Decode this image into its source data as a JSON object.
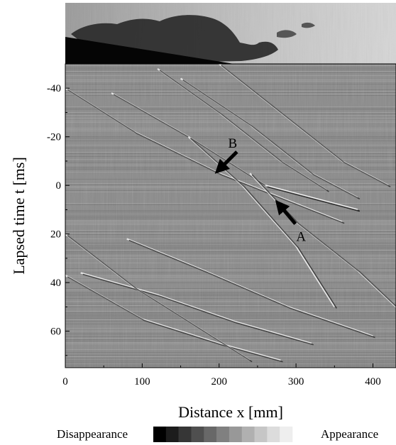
{
  "chart_data": {
    "type": "heatmap",
    "description_source": "spatio-temporal difference image (x–t plot)",
    "xlabel": "Distance x [mm]",
    "ylabel": "Lapsed time t [ms]",
    "xlim": [
      0,
      430
    ],
    "ylim": [
      -50,
      75
    ],
    "y_inverted": true,
    "x_ticks": [
      0,
      100,
      200,
      300,
      400
    ],
    "y_ticks": [
      -40,
      -20,
      0,
      20,
      40,
      60
    ],
    "grid": false,
    "legend": {
      "placement": "bottom",
      "low_label": "Disappearance",
      "high_label": "Appearance",
      "shades": [
        "#000000",
        "#1c1c1c",
        "#363636",
        "#4f4f4f",
        "#686868",
        "#808080",
        "#989898",
        "#b0b0b0",
        "#c6c6c6",
        "#dcdcdc",
        "#eeeeee"
      ]
    },
    "annotations": [
      {
        "text": "A",
        "x": 290,
        "y": 10
      },
      {
        "text": "B",
        "x": 225,
        "y": -15
      }
    ],
    "streaks": [
      {
        "name": "streak-1",
        "x": [
          0,
          90,
          200,
          320,
          360
        ],
        "y": [
          -40,
          -22,
          -5,
          10,
          15
        ]
      },
      {
        "name": "streak-2",
        "x": [
          60,
          160,
          260,
          380
        ],
        "y": [
          -38,
          -20,
          0,
          10
        ]
      },
      {
        "name": "streak-3",
        "x": [
          150,
          240,
          320,
          380
        ],
        "y": [
          -44,
          -25,
          -5,
          5
        ]
      },
      {
        "name": "streak-4",
        "x": [
          120,
          200,
          280,
          340
        ],
        "y": [
          -48,
          -30,
          -10,
          2
        ]
      },
      {
        "name": "streak-5",
        "x": [
          200,
          280,
          360,
          420
        ],
        "y": [
          -50,
          -30,
          -10,
          0
        ]
      },
      {
        "name": "streak-6",
        "x": [
          0,
          100,
          200,
          280
        ],
        "y": [
          37,
          55,
          65,
          72
        ]
      },
      {
        "name": "streak-7",
        "x": [
          20,
          120,
          220,
          320
        ],
        "y": [
          36,
          45,
          56,
          65
        ]
      },
      {
        "name": "streak-8",
        "x": [
          80,
          180,
          290,
          400
        ],
        "y": [
          22,
          35,
          50,
          62
        ]
      },
      {
        "name": "streak-9",
        "x": [
          160,
          230,
          300,
          350
        ],
        "y": [
          -20,
          0,
          25,
          50
        ]
      },
      {
        "name": "streak-10",
        "x": [
          240,
          300,
          380,
          430
        ],
        "y": [
          -5,
          15,
          35,
          50
        ]
      },
      {
        "name": "streak-11",
        "x": [
          0,
          90,
          180,
          240
        ],
        "y": [
          20,
          42,
          60,
          72
        ]
      },
      {
        "name": "streak-12",
        "x": [
          260,
          320,
          380
        ],
        "y": [
          0,
          5,
          10
        ]
      }
    ]
  },
  "colors": {
    "background": "#ffffff",
    "plot_mid_gray": "#8a8a8a",
    "photo_smoke": "#333333",
    "photo_sky": "#bdbdbd"
  }
}
